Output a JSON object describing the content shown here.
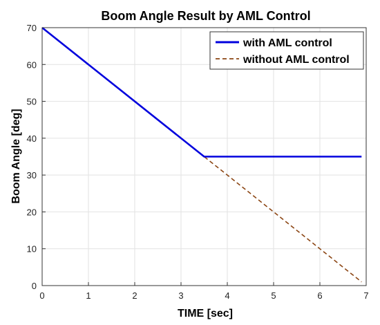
{
  "chart_data": {
    "type": "line",
    "title": "Boom Angle Result by AML Control",
    "xlabel": "TIME [sec]",
    "ylabel": "Boom Angle [deg]",
    "xlim": [
      0,
      7
    ],
    "ylim": [
      0,
      70
    ],
    "xticks": [
      0,
      1,
      2,
      3,
      4,
      5,
      6,
      7
    ],
    "yticks": [
      0,
      10,
      20,
      30,
      40,
      50,
      60,
      70
    ],
    "grid": true,
    "legend_position": "top-right",
    "series": [
      {
        "name": "with AML control",
        "x": [
          0,
          3.5,
          6.9
        ],
        "y": [
          70,
          35,
          35
        ],
        "color": "#0000dd",
        "style": "solid"
      },
      {
        "name": "without AML control",
        "x": [
          0,
          6.9
        ],
        "y": [
          70,
          1
        ],
        "color": "#8b4513",
        "style": "dashed"
      }
    ]
  }
}
